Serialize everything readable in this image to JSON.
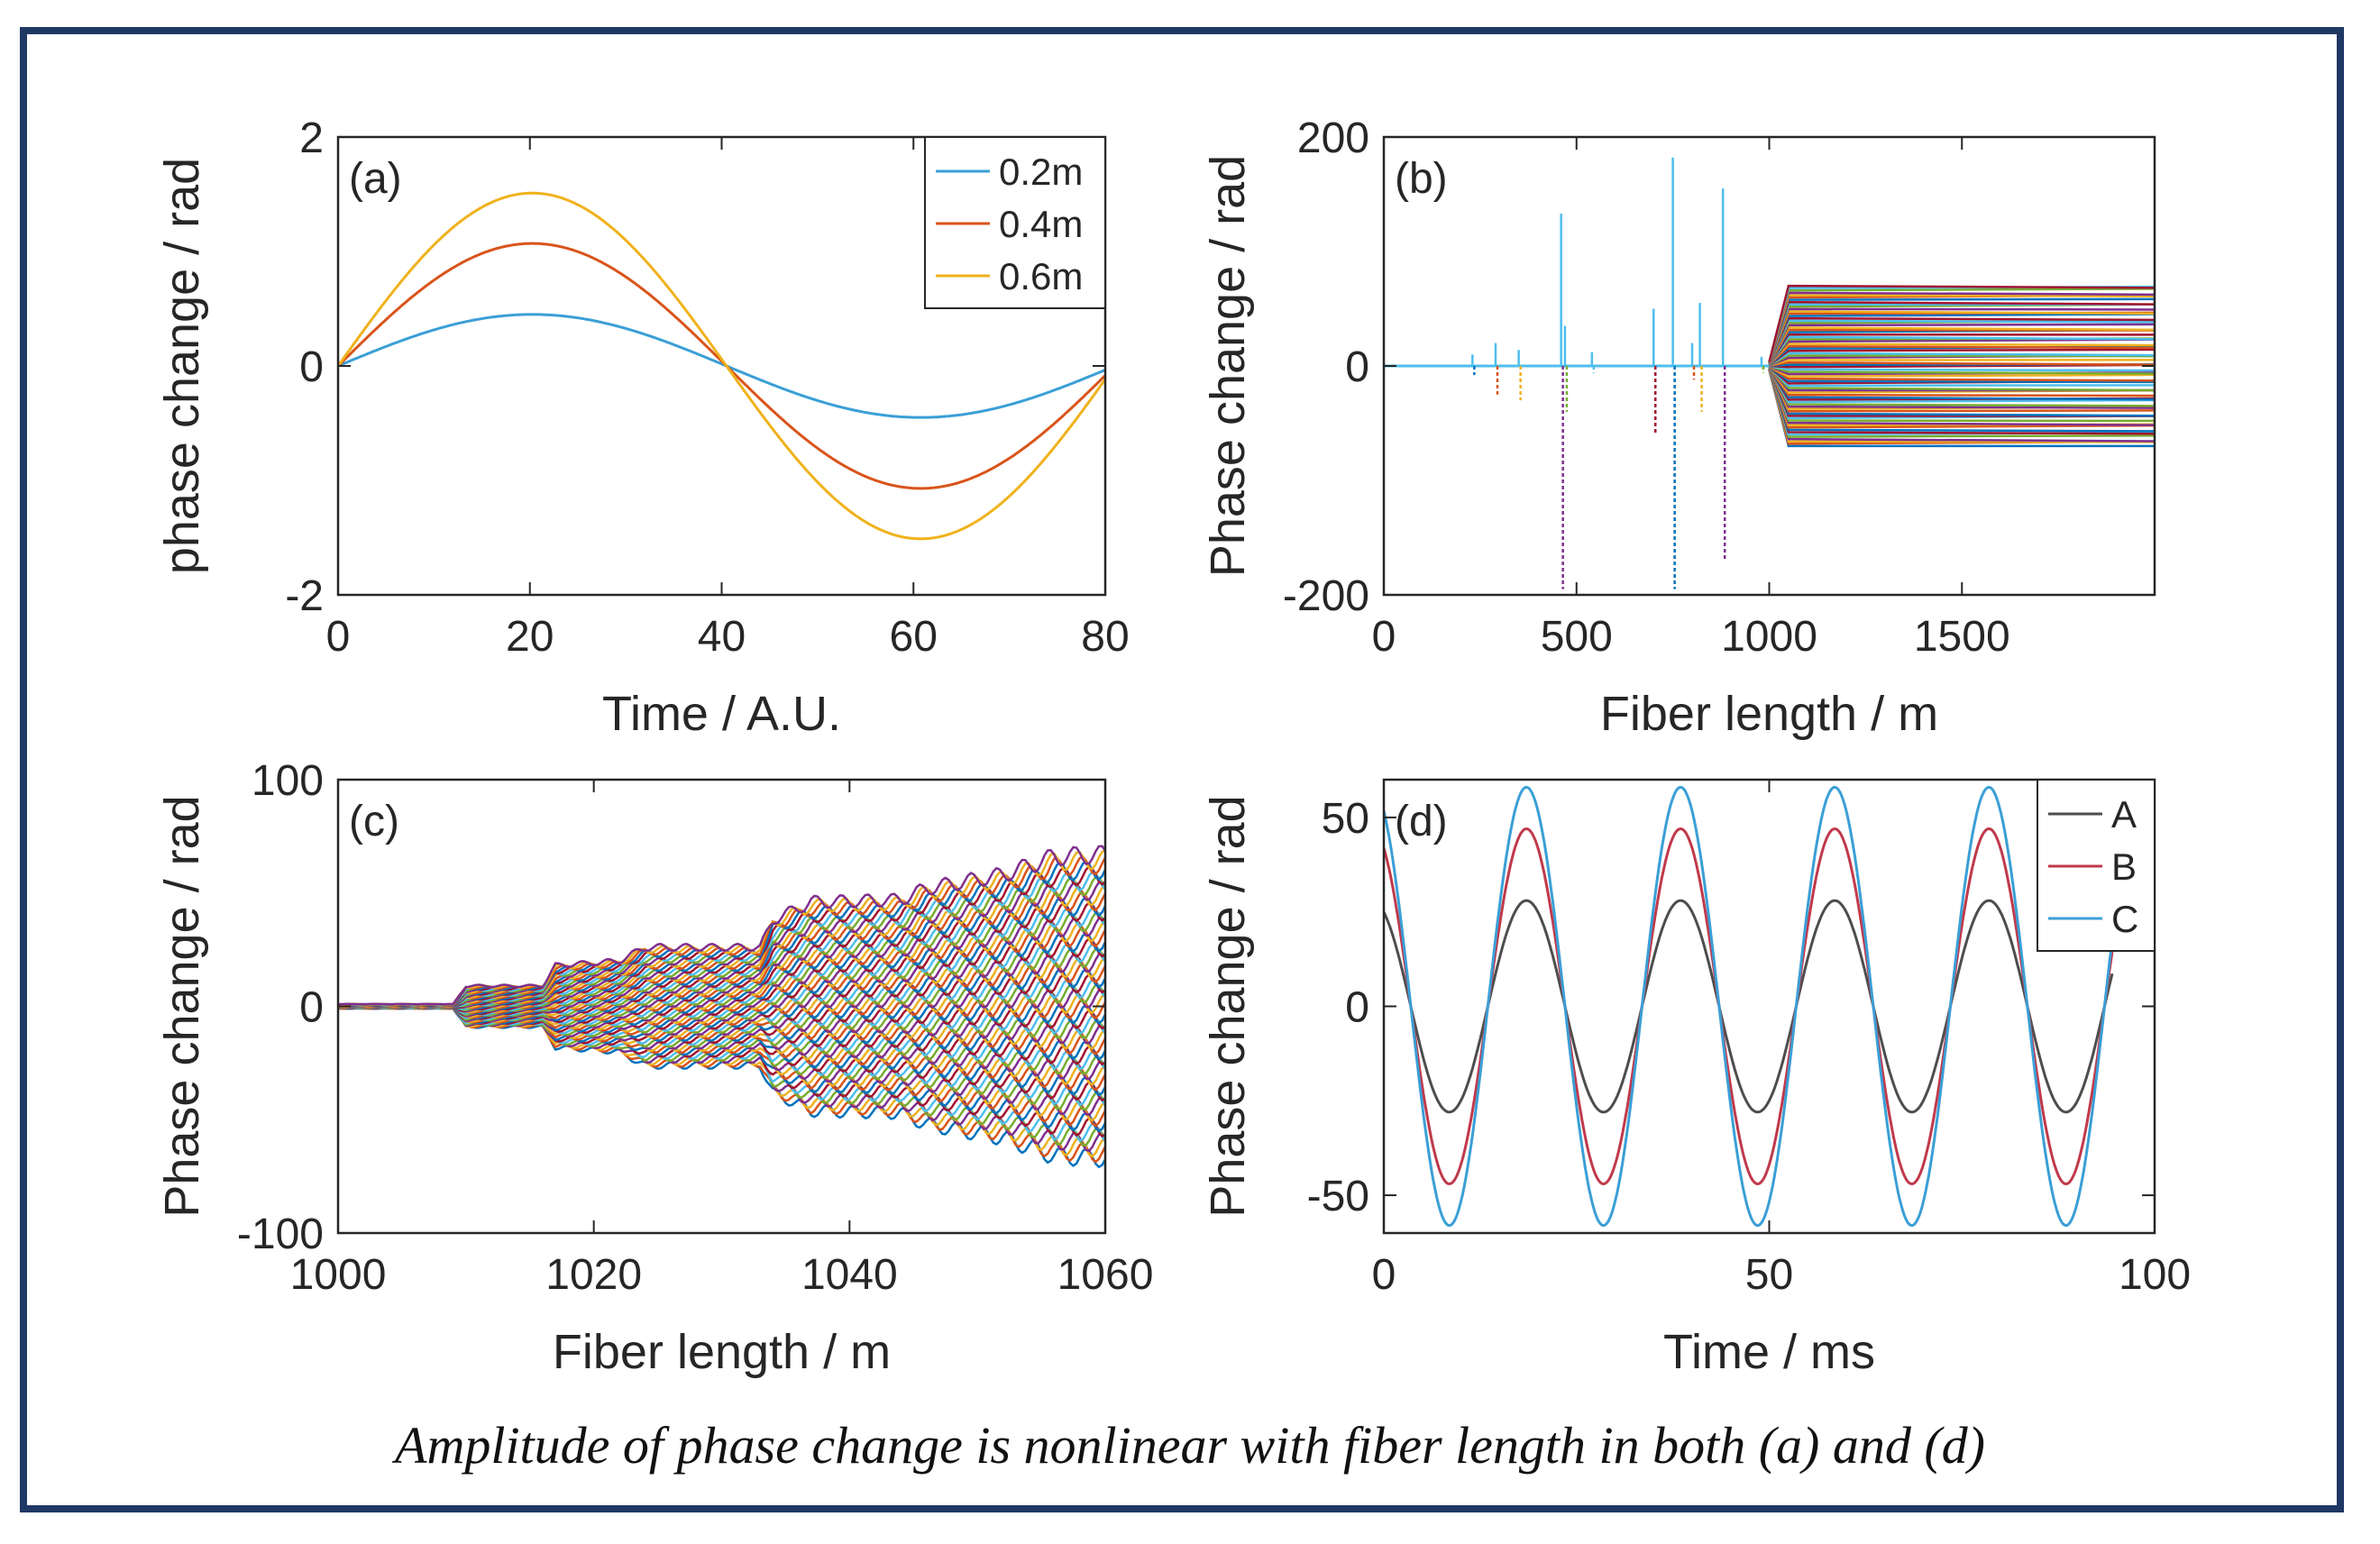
{
  "caption": "Amplitude of phase change is nonlinear with fiber length in both (a) and (d)",
  "colors": {
    "blue": "#3a9fd6",
    "orange": "#d9541a",
    "yellow": "#f0b21c",
    "gray": "#4d4d4d",
    "red": "#c0394b",
    "cyan": "#3a9fd6",
    "frame": "#1f3864"
  },
  "chart_data": [
    {
      "id": "a",
      "type": "line",
      "panel_label": "(a)",
      "xlabel": "Time / A.U.",
      "ylabel": "phase change / rad",
      "xlim": [
        0,
        80
      ],
      "ylim": [
        -2,
        2
      ],
      "xticks": [
        0,
        20,
        40,
        60,
        80
      ],
      "yticks": [
        -2,
        0,
        2
      ],
      "period": 81,
      "series": [
        {
          "name": "0.2m",
          "amplitude": 0.45,
          "color": "#3a9fd6"
        },
        {
          "name": "0.4m",
          "amplitude": 1.07,
          "color": "#d9541a"
        },
        {
          "name": "0.6m",
          "amplitude": 1.51,
          "color": "#f0b21c"
        }
      ],
      "legend": "top-right"
    },
    {
      "id": "b",
      "type": "line",
      "panel_label": "(b)",
      "xlabel": "Fiber length / m",
      "ylabel": "Phase change / rad",
      "xlim": [
        0,
        2000
      ],
      "ylim": [
        -200,
        200
      ],
      "xticks": [
        0,
        500,
        1000,
        1500
      ],
      "yticks": [
        -200,
        0,
        200
      ],
      "band_start_x": 1000,
      "band_full_x": 1050,
      "band_max": 70,
      "spikes": [
        {
          "x": 230,
          "top": 10,
          "bottom": -8
        },
        {
          "x": 290,
          "top": 20,
          "bottom": -25
        },
        {
          "x": 350,
          "top": 14,
          "bottom": -30
        },
        {
          "x": 460,
          "top": 133,
          "bottom": -195
        },
        {
          "x": 470,
          "top": 35,
          "bottom": -40
        },
        {
          "x": 540,
          "top": 12,
          "bottom": -6
        },
        {
          "x": 700,
          "top": 50,
          "bottom": -60
        },
        {
          "x": 750,
          "top": 182,
          "bottom": -195
        },
        {
          "x": 800,
          "top": 20,
          "bottom": -12
        },
        {
          "x": 820,
          "top": 55,
          "bottom": -40
        },
        {
          "x": 880,
          "top": 155,
          "bottom": -170
        },
        {
          "x": 980,
          "top": 8,
          "bottom": -6
        }
      ]
    },
    {
      "id": "c",
      "type": "line",
      "panel_label": "(c)",
      "xlabel": "Fiber length / m",
      "ylabel": "Phase change / rad",
      "xlim": [
        1000,
        1060
      ],
      "ylim": [
        -100,
        100
      ],
      "xticks": [
        1000,
        1020,
        1040,
        1060
      ],
      "yticks": [
        -100,
        0,
        100
      ],
      "envelope": [
        {
          "x": 1000,
          "max": 1
        },
        {
          "x": 1009,
          "max": 1
        },
        {
          "x": 1010,
          "max": 9
        },
        {
          "x": 1016,
          "max": 9
        },
        {
          "x": 1017,
          "max": 18
        },
        {
          "x": 1022,
          "max": 20
        },
        {
          "x": 1024,
          "max": 26
        },
        {
          "x": 1033,
          "max": 26
        },
        {
          "x": 1034,
          "max": 38
        },
        {
          "x": 1037,
          "max": 46
        },
        {
          "x": 1044,
          "max": 47
        },
        {
          "x": 1046,
          "max": 52
        },
        {
          "x": 1052,
          "max": 58
        },
        {
          "x": 1056,
          "max": 66
        },
        {
          "x": 1060,
          "max": 67
        }
      ]
    },
    {
      "id": "d",
      "type": "line",
      "panel_label": "(d)",
      "xlabel": "Time / ms",
      "ylabel": "Phase change / rad",
      "xlim": [
        0,
        100
      ],
      "ylim": [
        -60,
        60
      ],
      "xticks": [
        0,
        50,
        100
      ],
      "yticks": [
        -50,
        0,
        50
      ],
      "period": 20,
      "phase_peak_at": 18.5,
      "x_end": 94.5,
      "series": [
        {
          "name": "A",
          "amplitude": 28,
          "color": "#4d4d4d"
        },
        {
          "name": "B",
          "amplitude": 47,
          "color": "#c0394b"
        },
        {
          "name": "C",
          "amplitude": 58,
          "color": "#3a9fd6"
        }
      ],
      "legend": "top-right"
    }
  ]
}
